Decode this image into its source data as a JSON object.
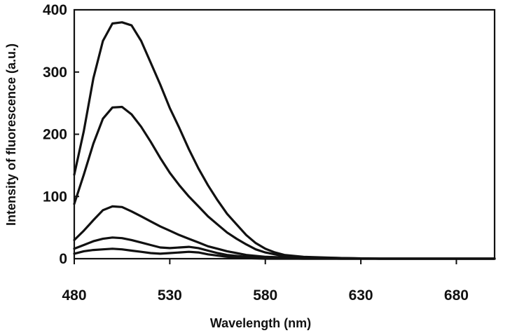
{
  "chart_data": {
    "type": "line",
    "title": "",
    "xlabel": "Wavelength (nm)",
    "ylabel": "Intensity of fluorescence (a.u.)",
    "xlim": [
      480,
      700
    ],
    "ylim": [
      0,
      400
    ],
    "xticks": [
      480,
      530,
      580,
      630,
      680
    ],
    "yticks": [
      0,
      100,
      200,
      300,
      400
    ],
    "grid": false,
    "series": [
      {
        "values": [
          [
            480,
            135
          ],
          [
            485,
            205
          ],
          [
            490,
            290
          ],
          [
            495,
            350
          ],
          [
            500,
            378
          ],
          [
            505,
            380
          ],
          [
            510,
            375
          ],
          [
            515,
            350
          ],
          [
            520,
            315
          ],
          [
            525,
            280
          ],
          [
            530,
            242
          ],
          [
            535,
            210
          ],
          [
            540,
            176
          ],
          [
            545,
            145
          ],
          [
            550,
            118
          ],
          [
            555,
            94
          ],
          [
            560,
            72
          ],
          [
            565,
            55
          ],
          [
            570,
            38
          ],
          [
            575,
            25
          ],
          [
            580,
            16
          ],
          [
            585,
            10
          ],
          [
            590,
            6
          ],
          [
            600,
            3
          ],
          [
            620,
            1
          ],
          [
            640,
            0
          ],
          [
            700,
            0
          ]
        ]
      },
      {
        "values": [
          [
            480,
            88
          ],
          [
            485,
            135
          ],
          [
            490,
            185
          ],
          [
            495,
            225
          ],
          [
            500,
            243
          ],
          [
            505,
            244
          ],
          [
            510,
            232
          ],
          [
            515,
            212
          ],
          [
            520,
            188
          ],
          [
            525,
            162
          ],
          [
            530,
            138
          ],
          [
            535,
            118
          ],
          [
            540,
            100
          ],
          [
            545,
            84
          ],
          [
            550,
            68
          ],
          [
            555,
            55
          ],
          [
            560,
            42
          ],
          [
            565,
            32
          ],
          [
            570,
            23
          ],
          [
            575,
            15
          ],
          [
            580,
            10
          ],
          [
            585,
            7
          ],
          [
            590,
            4
          ],
          [
            600,
            2
          ],
          [
            620,
            1
          ],
          [
            640,
            0
          ],
          [
            700,
            0
          ]
        ]
      },
      {
        "values": [
          [
            480,
            30
          ],
          [
            485,
            45
          ],
          [
            490,
            62
          ],
          [
            495,
            78
          ],
          [
            500,
            84
          ],
          [
            505,
            83
          ],
          [
            510,
            76
          ],
          [
            515,
            68
          ],
          [
            520,
            60
          ],
          [
            525,
            52
          ],
          [
            530,
            45
          ],
          [
            535,
            38
          ],
          [
            540,
            32
          ],
          [
            545,
            26
          ],
          [
            550,
            20
          ],
          [
            555,
            16
          ],
          [
            560,
            12
          ],
          [
            565,
            9
          ],
          [
            570,
            6
          ],
          [
            580,
            3
          ],
          [
            600,
            1
          ],
          [
            620,
            0
          ],
          [
            700,
            0
          ]
        ]
      },
      {
        "values": [
          [
            480,
            16
          ],
          [
            485,
            22
          ],
          [
            490,
            28
          ],
          [
            495,
            32
          ],
          [
            500,
            34
          ],
          [
            505,
            33
          ],
          [
            510,
            30
          ],
          [
            515,
            26
          ],
          [
            520,
            22
          ],
          [
            525,
            18
          ],
          [
            530,
            17
          ],
          [
            535,
            18
          ],
          [
            540,
            19
          ],
          [
            545,
            17
          ],
          [
            550,
            13
          ],
          [
            555,
            9
          ],
          [
            560,
            6
          ],
          [
            570,
            3
          ],
          [
            580,
            1
          ],
          [
            600,
            0
          ],
          [
            700,
            0
          ]
        ]
      },
      {
        "values": [
          [
            480,
            8
          ],
          [
            485,
            12
          ],
          [
            490,
            14
          ],
          [
            495,
            15
          ],
          [
            500,
            16
          ],
          [
            505,
            15
          ],
          [
            510,
            13
          ],
          [
            515,
            11
          ],
          [
            520,
            9
          ],
          [
            525,
            8
          ],
          [
            530,
            9
          ],
          [
            535,
            10
          ],
          [
            540,
            11
          ],
          [
            545,
            10
          ],
          [
            550,
            7
          ],
          [
            555,
            5
          ],
          [
            560,
            3
          ],
          [
            570,
            1
          ],
          [
            580,
            0
          ],
          [
            700,
            0
          ]
        ]
      }
    ]
  }
}
